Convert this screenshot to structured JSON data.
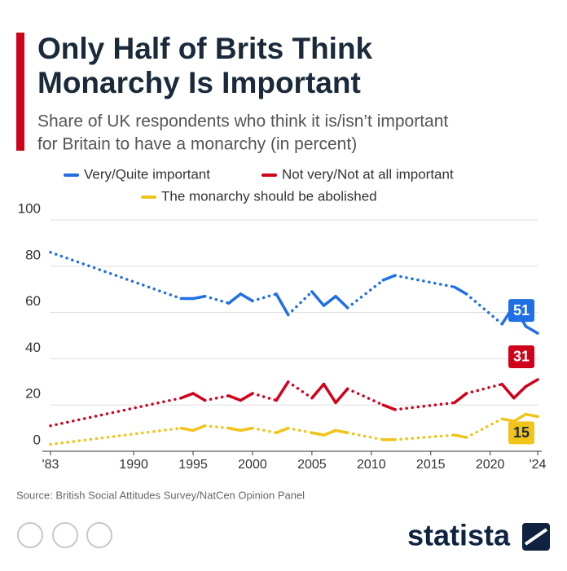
{
  "chart_data": {
    "type": "line",
    "title_lines": [
      "Only Half of Brits Think",
      "Monarchy Is Important"
    ],
    "subtitle_lines": [
      "Share of UK respondents who think it is/isn’t important",
      "for Britain to have a monarchy (in percent)"
    ],
    "x": [
      1983,
      1994,
      1995,
      1996,
      1998,
      1999,
      2000,
      2002,
      2003,
      2005,
      2006,
      2007,
      2008,
      2011,
      2012,
      2017,
      2018,
      2021,
      2022,
      2023,
      2024
    ],
    "series": [
      {
        "name": "Very/Quite important",
        "color": "#1f6fe5",
        "values": [
          86,
          66,
          66,
          67,
          64,
          68,
          65,
          68,
          59,
          69,
          63,
          67,
          62,
          74,
          76,
          71,
          68,
          55,
          63,
          54,
          51
        ]
      },
      {
        "name": "Not very/Not at all important",
        "color": "#d0021b",
        "values": [
          11,
          23,
          25,
          22,
          24,
          22,
          25,
          22,
          30,
          23,
          29,
          21,
          27,
          20,
          18,
          21,
          25,
          29,
          23,
          28,
          31
        ]
      },
      {
        "name": "The monarchy should be abolished",
        "color": "#f0c419",
        "values": [
          3,
          10,
          9,
          11,
          10,
          9,
          10,
          8,
          10,
          8,
          7,
          9,
          8,
          5,
          5,
          7,
          6,
          14,
          13,
          16,
          15
        ]
      }
    ],
    "xlim": [
      1983,
      2024
    ],
    "xticks": [
      {
        "value": 1983,
        "label": "'83"
      },
      1990,
      1995,
      2000,
      2005,
      2010,
      2015,
      2020,
      {
        "value": 2024,
        "label": "'24"
      }
    ],
    "ylim": [
      0,
      100
    ],
    "yticks": [
      0,
      20,
      40,
      60,
      80,
      100
    ],
    "grid": true,
    "source": "Source: British Social Attitudes Survey/NatCen Opinion Panel",
    "brand": "statista"
  }
}
